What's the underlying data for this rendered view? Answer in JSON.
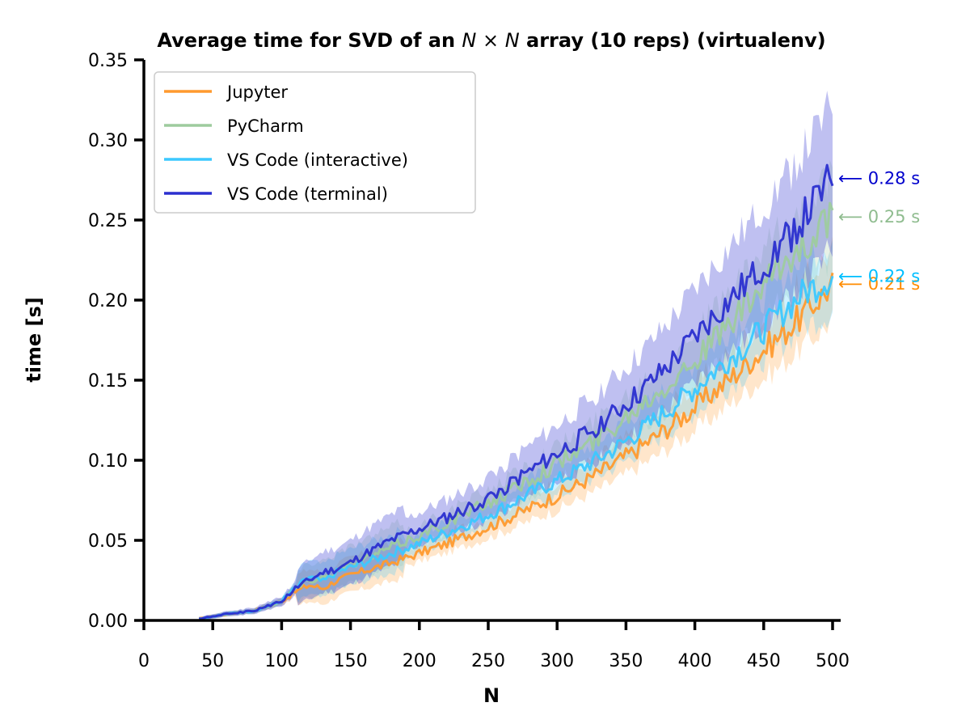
{
  "chart_data": {
    "type": "line",
    "title_parts": [
      "Average time for SVD of an ",
      "N",
      " × ",
      "N",
      " array (10 reps) (virtualenv)"
    ],
    "xlabel": "N",
    "ylabel": "time [s]",
    "xlim": [
      0,
      500
    ],
    "ylim": [
      0,
      0.35
    ],
    "xticks": [
      0,
      50,
      100,
      150,
      200,
      250,
      300,
      350,
      400,
      450,
      500
    ],
    "yticks": [
      0.0,
      0.05,
      0.1,
      0.15,
      0.2,
      0.25,
      0.3,
      0.35
    ],
    "ytick_labels": [
      "0.00",
      "0.05",
      "0.10",
      "0.15",
      "0.20",
      "0.25",
      "0.30",
      "0.35"
    ],
    "grid": false,
    "legend_position": "top-left",
    "x": [
      40,
      60,
      80,
      100,
      110,
      120,
      130,
      140,
      150,
      160,
      180,
      200,
      220,
      240,
      260,
      280,
      300,
      320,
      340,
      360,
      380,
      400,
      420,
      440,
      460,
      480,
      500
    ],
    "series": [
      {
        "name": "Jupyter",
        "color": "#ff9a2e",
        "values": [
          0.001,
          0.004,
          0.006,
          0.012,
          0.018,
          0.022,
          0.02,
          0.025,
          0.028,
          0.031,
          0.036,
          0.042,
          0.048,
          0.055,
          0.062,
          0.07,
          0.078,
          0.087,
          0.097,
          0.108,
          0.12,
          0.133,
          0.147,
          0.162,
          0.176,
          0.192,
          0.21
        ],
        "end_label": "0.21 s",
        "end_color": "#ff8c00"
      },
      {
        "name": "PyCharm",
        "color": "#9ecb9e",
        "values": [
          0.001,
          0.004,
          0.006,
          0.012,
          0.02,
          0.025,
          0.027,
          0.031,
          0.035,
          0.038,
          0.046,
          0.053,
          0.061,
          0.069,
          0.078,
          0.088,
          0.098,
          0.108,
          0.12,
          0.135,
          0.148,
          0.163,
          0.18,
          0.198,
          0.218,
          0.235,
          0.252
        ],
        "end_label": "0.25 s",
        "end_color": "#8fbc8f"
      },
      {
        "name": "VS Code (interactive)",
        "color": "#3cc8ff",
        "values": [
          0.001,
          0.004,
          0.006,
          0.012,
          0.02,
          0.027,
          0.024,
          0.03,
          0.033,
          0.036,
          0.042,
          0.048,
          0.055,
          0.062,
          0.07,
          0.079,
          0.087,
          0.096,
          0.106,
          0.118,
          0.131,
          0.145,
          0.16,
          0.174,
          0.19,
          0.205,
          0.215
        ],
        "end_label": "0.22 s",
        "end_color": "#00bfff"
      },
      {
        "name": "VS Code (terminal)",
        "color": "#2b2fcf",
        "values": [
          0.001,
          0.004,
          0.006,
          0.012,
          0.02,
          0.025,
          0.03,
          0.032,
          0.036,
          0.041,
          0.05,
          0.057,
          0.064,
          0.072,
          0.082,
          0.093,
          0.104,
          0.116,
          0.128,
          0.142,
          0.158,
          0.177,
          0.195,
          0.212,
          0.232,
          0.252,
          0.276
        ],
        "end_label": "0.28 s",
        "end_color": "#0000cd"
      }
    ]
  }
}
